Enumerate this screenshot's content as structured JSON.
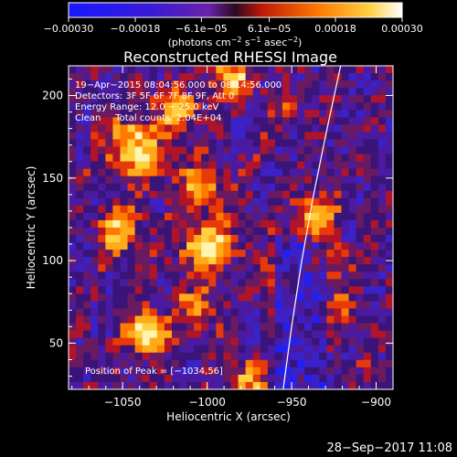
{
  "chart_data": {
    "type": "heatmap",
    "title": "Reconstructed RHESSI Image",
    "xlabel": "Heliocentric X (arcsec)",
    "ylabel": "Heliocentric Y (arcsec)",
    "xlim": [
      -1082,
      -890
    ],
    "ylim": [
      22,
      218
    ],
    "x_ticks": [
      -1050,
      -1000,
      -950,
      -900
    ],
    "x_tick_labels": [
      "−1050",
      "−1000",
      "−950",
      "−900"
    ],
    "y_ticks": [
      50,
      100,
      150,
      200
    ],
    "y_tick_labels": [
      "50",
      "100",
      "150",
      "200"
    ],
    "colorbar": {
      "min": -0.0003,
      "max": 0.0003,
      "ticks": [
        -0.0003,
        -0.00018,
        -6.1e-05,
        6.1e-05,
        0.00018,
        0.0003
      ],
      "tick_labels": [
        "−0.00030",
        "−0.00018",
        "−6.1e−05",
        "6.1e−05",
        "0.00018",
        "0.00030"
      ],
      "units_prefix": "(photons cm",
      "units_exp1": "−2",
      "units_mid": " s",
      "units_exp2": "−1",
      "units_mid2": " asec",
      "units_exp3": "−2",
      "units_suffix": ")"
    },
    "annotations": {
      "time_range": "19−Apr−2015 08:04:56.000 to 08:14:56.000",
      "detectors": "Detectors: 3F 5F 6F 7F 8F 9F, Att 0",
      "energy_range": "Energy Range: 12.0 − 25.0 keV",
      "clean_counts": "Clean     Total counts: 2.04E+04",
      "peak_position": "Position of Peak = [−1034,56]"
    },
    "limb": [
      [
        -955,
        22
      ],
      [
        -950,
        60
      ],
      [
        -944,
        100
      ],
      [
        -937,
        140
      ],
      [
        -929,
        180
      ],
      [
        -921,
        218
      ]
    ],
    "sources": [
      {
        "x": -1035,
        "y": 56,
        "sigma": 8,
        "amp": 2.2
      },
      {
        "x": -1042,
        "y": 168,
        "sigma": 12,
        "amp": 1.6
      },
      {
        "x": -1000,
        "y": 110,
        "sigma": 11,
        "amp": 1.7
      },
      {
        "x": -1005,
        "y": 145,
        "sigma": 9,
        "amp": 1.2
      },
      {
        "x": -1052,
        "y": 118,
        "sigma": 9,
        "amp": 1.3
      },
      {
        "x": -1018,
        "y": 192,
        "sigma": 8,
        "amp": 1.4
      },
      {
        "x": -985,
        "y": 210,
        "sigma": 8,
        "amp": 1.6
      },
      {
        "x": -1005,
        "y": 72,
        "sigma": 8,
        "amp": 1.1
      },
      {
        "x": -935,
        "y": 128,
        "sigma": 8,
        "amp": 1.3
      },
      {
        "x": -925,
        "y": 100,
        "sigma": 6,
        "amp": 0.9
      },
      {
        "x": -975,
        "y": 28,
        "sigma": 7,
        "amp": 1.2
      },
      {
        "x": -960,
        "y": 90,
        "sigma": 6,
        "amp": 0.8
      },
      {
        "x": -920,
        "y": 70,
        "sigma": 6,
        "amp": 0.7
      },
      {
        "x": -955,
        "y": 190,
        "sigma": 6,
        "amp": 0.7
      }
    ]
  },
  "footer": {
    "date_stamp": "28−Sep−2017 11:08"
  }
}
